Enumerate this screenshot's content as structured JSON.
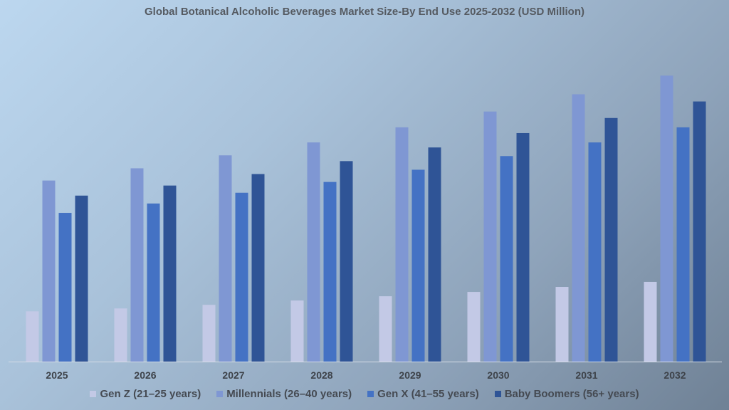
{
  "chart_data": {
    "type": "bar",
    "title": "Global Botanical Alcoholic Beverages Market Size-By End Use 2025-2032 (USD Million)",
    "xlabel": "",
    "ylabel": "",
    "categories": [
      "2025",
      "2026",
      "2027",
      "2028",
      "2029",
      "2030",
      "2031",
      "2032"
    ],
    "series": [
      {
        "name": "Gen Z (21–25 years)",
        "color": "#c3c9e6",
        "values": [
          70,
          74,
          79,
          85,
          91,
          97,
          104,
          111
        ]
      },
      {
        "name": "Millennials (26–40 years)",
        "color": "#7f97d3",
        "values": [
          252,
          269,
          287,
          305,
          326,
          348,
          372,
          398
        ]
      },
      {
        "name": "Gen X (41–55 years)",
        "color": "#4472c4",
        "values": [
          207,
          220,
          235,
          250,
          267,
          286,
          305,
          326
        ]
      },
      {
        "name": "Baby Boomers (56+ years)",
        "color": "#2f5496",
        "values": [
          231,
          245,
          261,
          279,
          298,
          318,
          339,
          362
        ]
      }
    ],
    "ylim": [
      0,
      420
    ],
    "grid": false,
    "legend": "bottom"
  }
}
